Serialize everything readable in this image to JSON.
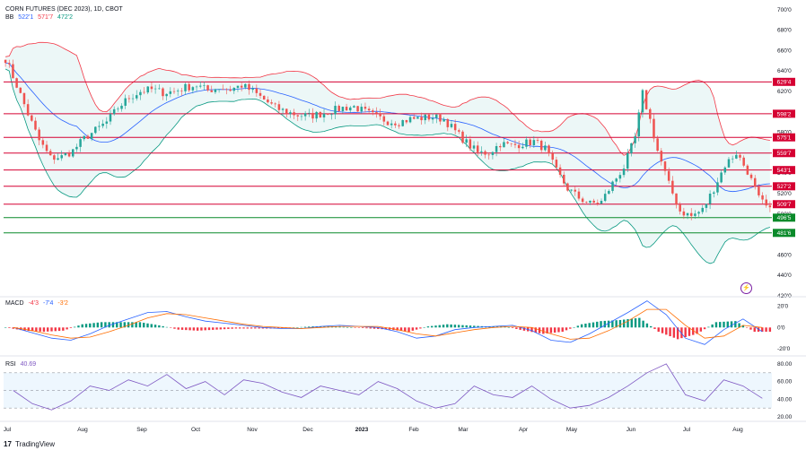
{
  "header": {
    "symbol_title": "CORN FUTURES (DEC 2023), 1D, CBOT",
    "bb_label": "BB",
    "bb_values": [
      "522'1",
      "571'7",
      "472'2"
    ],
    "macd_label": "MACD",
    "macd_values": [
      "-4'3",
      "-7'4",
      "-3'2"
    ],
    "rsi_label": "RSI",
    "rsi_value": "40.69"
  },
  "footer": {
    "brand_logo": "17",
    "brand_name": "TradingView"
  },
  "colors": {
    "up": "#26a69a",
    "down": "#ef5350",
    "bb_mid": "#2962ff",
    "bb_upper": "#f23645",
    "bb_lower": "#089981",
    "bb_fill": "#e0f2f1",
    "level_red": "#d50032",
    "level_green": "#0a8a2a",
    "macd_line": "#2962ff",
    "signal_line": "#ff6d00",
    "rsi_line": "#7e57c2",
    "rsi_band": "#e3f2fd"
  },
  "icons": {
    "alert": "lightning-icon"
  },
  "chart_data": [
    {
      "type": "candlestick",
      "title": "CORN FUTURES (DEC 2023), 1D, CBOT",
      "x_tick_labels": [
        "Jul",
        "Aug",
        "Sep",
        "Oct",
        "Nov",
        "Dec",
        "2023",
        "Feb",
        "Mar",
        "Apr",
        "May",
        "Jun",
        "Jul",
        "Aug"
      ],
      "y_tick_labels": [
        "700'0",
        "680'0",
        "660'0",
        "640'0",
        "620'0",
        "600'0",
        "580'0",
        "560'0",
        "540'0",
        "520'0",
        "500'0",
        "480'0",
        "460'0",
        "440'0",
        "420'0"
      ],
      "ylim": [
        420,
        706
      ],
      "horizontal_levels": [
        {
          "value": 629.4,
          "label": "629'4",
          "kind": "resistance"
        },
        {
          "value": 598.2,
          "label": "598'2",
          "kind": "resistance"
        },
        {
          "value": 575.1,
          "label": "575'1",
          "kind": "resistance"
        },
        {
          "value": 559.7,
          "label": "559'7",
          "kind": "resistance"
        },
        {
          "value": 543.1,
          "label": "543'1",
          "kind": "resistance"
        },
        {
          "value": 527.2,
          "label": "527'2",
          "kind": "resistance"
        },
        {
          "value": 509.7,
          "label": "509'7",
          "kind": "resistance"
        },
        {
          "value": 496.5,
          "label": "496'5",
          "kind": "support"
        },
        {
          "value": 481.6,
          "label": "481'6",
          "kind": "support"
        }
      ],
      "close_path": [
        [
          0,
          652
        ],
        [
          3,
          626
        ],
        [
          6,
          598
        ],
        [
          9,
          572
        ],
        [
          12,
          555
        ],
        [
          15,
          556
        ],
        [
          18,
          562
        ],
        [
          21,
          574
        ],
        [
          24,
          582
        ],
        [
          27,
          590
        ],
        [
          30,
          604
        ],
        [
          33,
          614
        ],
        [
          36,
          620
        ],
        [
          39,
          622
        ],
        [
          42,
          619
        ],
        [
          45,
          620
        ],
        [
          48,
          624
        ],
        [
          51,
          626
        ],
        [
          54,
          621
        ],
        [
          57,
          624
        ],
        [
          60,
          622
        ],
        [
          63,
          626
        ],
        [
          66,
          620
        ],
        [
          69,
          612
        ],
        [
          72,
          604
        ],
        [
          75,
          600
        ],
        [
          78,
          597
        ],
        [
          81,
          596
        ],
        [
          84,
          598
        ],
        [
          87,
          601
        ],
        [
          90,
          604
        ],
        [
          93,
          605
        ],
        [
          96,
          600
        ],
        [
          99,
          595
        ],
        [
          102,
          591
        ],
        [
          105,
          590
        ],
        [
          108,
          593
        ],
        [
          111,
          594
        ],
        [
          114,
          595
        ],
        [
          117,
          593
        ],
        [
          120,
          581
        ],
        [
          123,
          570
        ],
        [
          126,
          560
        ],
        [
          129,
          560
        ],
        [
          132,
          569
        ],
        [
          135,
          567
        ],
        [
          138,
          569
        ],
        [
          141,
          571
        ],
        [
          144,
          564
        ],
        [
          147,
          542
        ],
        [
          150,
          525
        ],
        [
          153,
          516
        ],
        [
          156,
          510
        ],
        [
          159,
          512
        ],
        [
          162,
          530
        ],
        [
          165,
          546
        ],
        [
          168,
          575
        ],
        [
          170,
          618
        ],
        [
          172,
          592
        ],
        [
          174,
          562
        ],
        [
          177,
          529
        ],
        [
          180,
          503
        ],
        [
          183,
          498
        ],
        [
          186,
          504
        ],
        [
          189,
          525
        ],
        [
          192,
          548
        ],
        [
          195,
          560
        ],
        [
          198,
          542
        ],
        [
          201,
          515
        ],
        [
          204,
          503
        ]
      ]
    },
    {
      "type": "line",
      "title": "MACD",
      "y_tick_labels": [
        "20'0",
        "0'0",
        "-20'0"
      ],
      "ylim": [
        -25,
        28
      ],
      "series": [
        {
          "name": "MACD",
          "values": [
            0,
            -5,
            -10,
            -12,
            -6,
            2,
            8,
            14,
            15,
            10,
            6,
            4,
            2,
            0,
            -1,
            -1,
            1,
            2,
            1,
            0,
            -4,
            -10,
            -8,
            -2,
            0,
            1,
            2,
            -3,
            -12,
            -14,
            -6,
            4,
            14,
            25,
            12,
            -10,
            -16,
            -2,
            8,
            -4
          ]
        },
        {
          "name": "Signal",
          "values": [
            0,
            -3,
            -7,
            -10,
            -9,
            -4,
            2,
            9,
            13,
            12,
            9,
            6,
            3,
            1,
            0,
            -1,
            0,
            1,
            1,
            1,
            -2,
            -6,
            -8,
            -5,
            -2,
            0,
            1,
            0,
            -6,
            -11,
            -10,
            -3,
            6,
            17,
            17,
            2,
            -10,
            -8,
            2,
            0
          ]
        },
        {
          "name": "Histogram",
          "values": [
            0,
            -3,
            -4,
            -3,
            3,
            5,
            5,
            5,
            2,
            -2,
            -3,
            -2,
            -1,
            -1,
            -1,
            0,
            1,
            1,
            0,
            -1,
            -2,
            -4,
            1,
            3,
            2,
            1,
            1,
            -3,
            -6,
            -4,
            3,
            6,
            7,
            9,
            -4,
            -11,
            -6,
            5,
            6,
            -4
          ]
        }
      ]
    },
    {
      "type": "line",
      "title": "RSI",
      "y_tick_labels": [
        "80.00",
        "60.00",
        "40.00",
        "20.00"
      ],
      "ylim": [
        17,
        86
      ],
      "band": [
        30,
        70
      ],
      "series": [
        {
          "name": "RSI",
          "values": [
            50,
            35,
            28,
            38,
            55,
            50,
            62,
            55,
            68,
            52,
            60,
            45,
            62,
            58,
            48,
            42,
            55,
            50,
            45,
            60,
            52,
            38,
            30,
            35,
            55,
            45,
            42,
            55,
            40,
            30,
            33,
            42,
            55,
            70,
            80,
            45,
            38,
            62,
            55,
            41
          ]
        }
      ]
    }
  ]
}
